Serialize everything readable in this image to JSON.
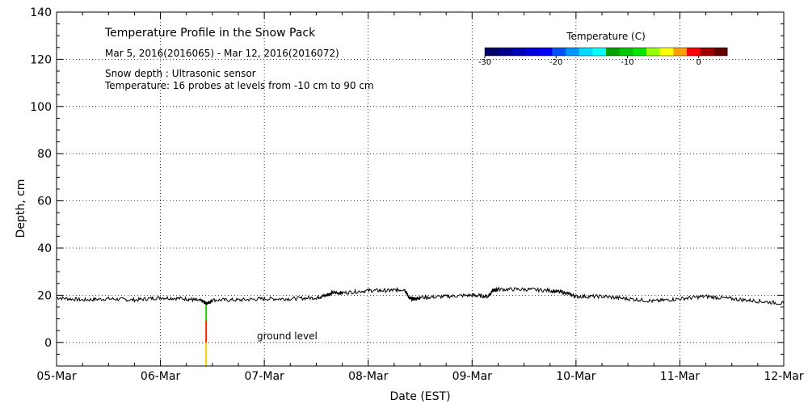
{
  "chart_data": {
    "type": "line",
    "title": "Temperature Profile in the Snow Pack",
    "subtitle": "Mar  5, 2016(2016065) - Mar 12, 2016(2016072)",
    "info_lines": [
      "Snow depth : Ultrasonic sensor",
      "Temperature: 16 probes at levels from -10 cm to 90 cm"
    ],
    "xlabel": "Date (EST)",
    "ylabel": "Depth, cm",
    "xlim": [
      "2016-03-05",
      "2016-03-12"
    ],
    "x_ticks": [
      "05-Mar",
      "06-Mar",
      "07-Mar",
      "08-Mar",
      "09-Mar",
      "10-Mar",
      "11-Mar",
      "12-Mar"
    ],
    "ylim": [
      -10,
      140
    ],
    "y_ticks": [
      "0",
      "20",
      "40",
      "60",
      "80",
      "100",
      "120",
      "140"
    ],
    "grid": true,
    "annotation": "ground level",
    "series": [
      {
        "name": "Snow depth",
        "color": "#000000",
        "x_days": [
          0,
          0.25,
          0.5,
          0.75,
          1.0,
          1.25,
          1.4,
          1.45,
          1.5,
          1.75,
          2.0,
          2.25,
          2.5,
          2.6,
          2.65,
          2.75,
          3.0,
          3.2,
          3.35,
          3.4,
          3.45,
          3.5,
          3.75,
          4.0,
          4.15,
          4.2,
          4.25,
          4.5,
          4.75,
          4.9,
          5.0,
          5.25,
          5.5,
          5.75,
          6.0,
          6.25,
          6.5,
          6.75,
          7.0
        ],
        "depth_cm": [
          19,
          18,
          18.5,
          18,
          19,
          18.5,
          17.5,
          16.5,
          18,
          18,
          18.5,
          18.5,
          19,
          20,
          21,
          21,
          22,
          22,
          22.5,
          18.5,
          18.5,
          19,
          19.5,
          20,
          19.5,
          22,
          22.5,
          22.5,
          22,
          21,
          19.5,
          19.5,
          18.5,
          17.5,
          18.5,
          19.5,
          18.5,
          17.5,
          16.5
        ]
      }
    ],
    "colorbar": {
      "label": "Temperature (C)",
      "ticks": [
        "-30",
        "-20",
        "-10",
        "0"
      ],
      "range": [
        -30,
        4
      ],
      "colors": [
        "#000066",
        "#00008c",
        "#0000b4",
        "#0000dc",
        "#0000ff",
        "#0050ff",
        "#0096ff",
        "#00dcff",
        "#00ffff",
        "#00a000",
        "#00c800",
        "#00e600",
        "#96ff00",
        "#ffff00",
        "#ffa000",
        "#ff0000",
        "#a00000",
        "#640000"
      ]
    },
    "temperature_profile": {
      "x_day": 1.44,
      "segments": [
        {
          "from_cm": -10,
          "to_cm": 0,
          "color": "#ffcc00"
        },
        {
          "from_cm": 0,
          "to_cm": 9,
          "color": "#ff2200"
        },
        {
          "from_cm": 9,
          "to_cm": 16,
          "color": "#22cc00"
        }
      ]
    }
  }
}
